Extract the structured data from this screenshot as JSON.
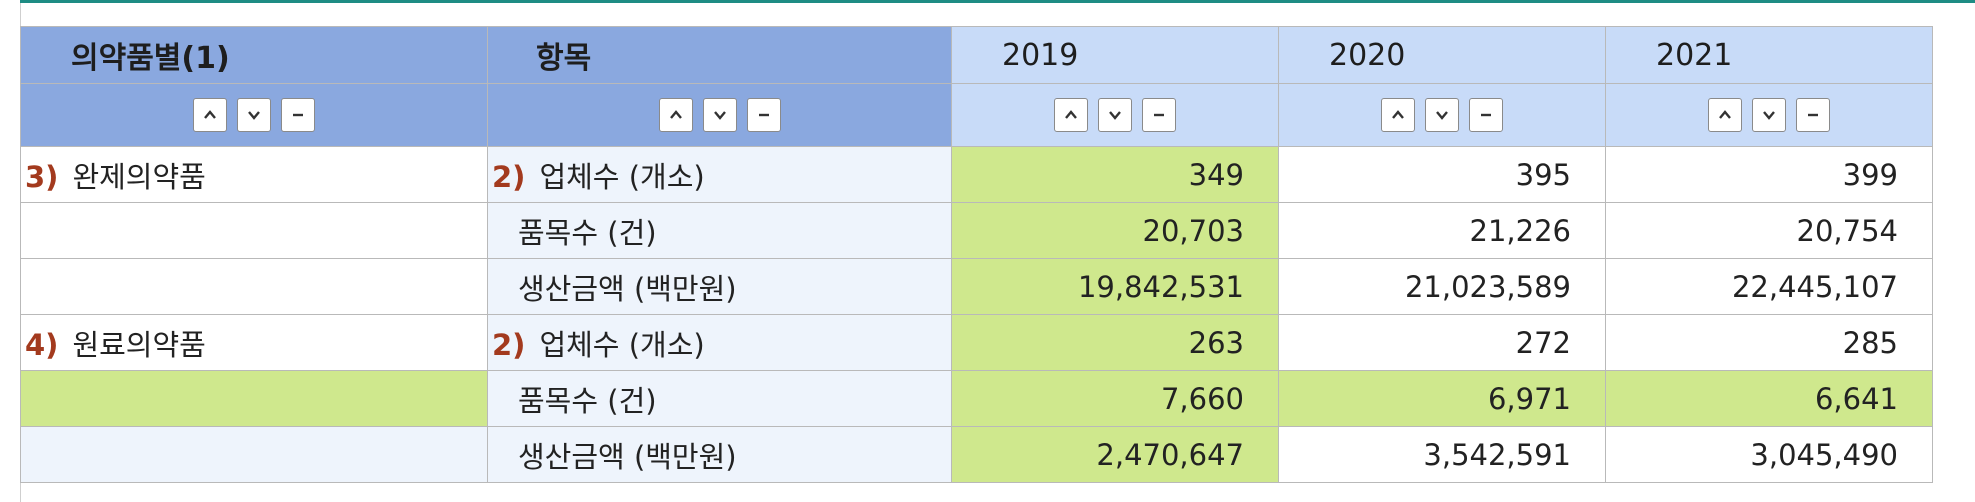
{
  "table": {
    "headers": {
      "col1": "의약품별(1)",
      "col2": "항목",
      "years": [
        "2019",
        "2020",
        "2021"
      ]
    },
    "controls": {
      "up_icon": "chevron-up-icon",
      "down_icon": "chevron-down-icon",
      "remove_icon": "minus-icon"
    },
    "groups": [
      {
        "num": "3)",
        "label": "완제의약품",
        "rows": [
          {
            "num": "2)",
            "item": "업체수 (개소)",
            "values": [
              "349",
              "395",
              "399"
            ]
          },
          {
            "num": "",
            "item": "품목수 (건)",
            "values": [
              "20,703",
              "21,226",
              "20,754"
            ]
          },
          {
            "num": "",
            "item": "생산금액 (백만원)",
            "values": [
              "19,842,531",
              "21,023,589",
              "22,445,107"
            ]
          }
        ]
      },
      {
        "num": "4)",
        "label": "원료의약품",
        "rows": [
          {
            "num": "2)",
            "item": "업체수 (개소)",
            "values": [
              "263",
              "272",
              "285"
            ]
          },
          {
            "num": "",
            "item": "품목수 (건)",
            "values": [
              "7,660",
              "6,971",
              "6,641"
            ]
          },
          {
            "num": "",
            "item": "생산금액 (백만원)",
            "values": [
              "2,470,647",
              "3,542,591",
              "3,045,490"
            ]
          }
        ]
      }
    ],
    "colors": {
      "header_dark": "#8aa8df",
      "header_light": "#c8dbf8",
      "highlight": "#cfe88d",
      "label_bg": "#eef4fc",
      "accent_line": "#1e8c84",
      "number_marker": "#a33a1e"
    }
  }
}
